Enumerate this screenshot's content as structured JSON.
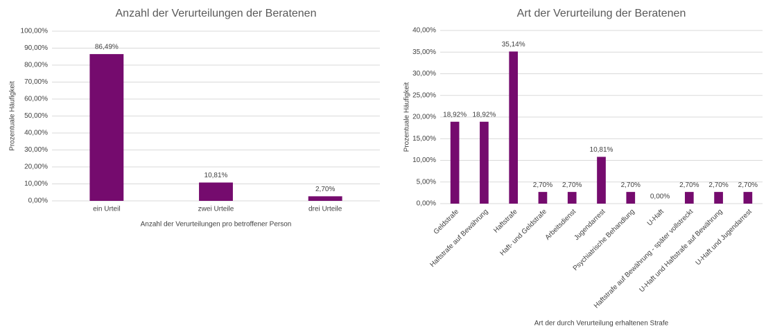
{
  "chart_data": [
    {
      "type": "bar",
      "title": "Anzahl der Verurteilungen der Beratenen",
      "categories": [
        "ein Urteil",
        "zwei Urteile",
        "drei Urteile"
      ],
      "values": [
        86.49,
        10.81,
        2.7
      ],
      "value_labels": [
        "86,49%",
        "10,81%",
        "2,70%"
      ],
      "color": "#750b6e",
      "ylim": [
        0,
        100
      ],
      "yticks": [
        {
          "value": 0,
          "label": "0,00%"
        },
        {
          "value": 10,
          "label": "10,00%"
        },
        {
          "value": 20,
          "label": "20,00%"
        },
        {
          "value": 30,
          "label": "30,00%"
        },
        {
          "value": 40,
          "label": "40,00%"
        },
        {
          "value": 50,
          "label": "50,00%"
        },
        {
          "value": 60,
          "label": "60,00%"
        },
        {
          "value": 70,
          "label": "70,00%"
        },
        {
          "value": 80,
          "label": "80,00%"
        },
        {
          "value": 90,
          "label": "90,00%"
        },
        {
          "value": 100,
          "label": "100,00%"
        }
      ],
      "ylabel": "Prozentuale Häufigkeit",
      "xlabel": "Anzahl der Verurteilungen pro betroffener Person",
      "grid": true
    },
    {
      "type": "bar",
      "title": "Art der Verurteilung der Beratenen",
      "categories": [
        "Geldstrafe",
        "Haftstrafe auf Bewährung",
        "Haftstrafe",
        "Haft- und Geldstrafe",
        "Arbeitsdienst",
        "Jugendarrest",
        "Psychiatrische Behandlung",
        "U-Haft",
        "Haftstrafe auf Bewährung - später vollstreckt",
        "U-Haft und Haftstrafe auf Bewährung",
        "U-Haft und Jugendarrest"
      ],
      "values": [
        18.92,
        18.92,
        35.14,
        2.7,
        2.7,
        10.81,
        2.7,
        0,
        2.7,
        2.7,
        2.7
      ],
      "value_labels": [
        "18,92%",
        "18,92%",
        "35,14%",
        "2,70%",
        "2,70%",
        "10,81%",
        "2,70%",
        "0,00%",
        "2,70%",
        "2,70%",
        "2,70%"
      ],
      "color": "#750b6e",
      "ylim": [
        0,
        40
      ],
      "yticks": [
        {
          "value": 0,
          "label": "0,00%"
        },
        {
          "value": 5,
          "label": "5,00%"
        },
        {
          "value": 10,
          "label": "10,00%"
        },
        {
          "value": 15,
          "label": "15,00%"
        },
        {
          "value": 20,
          "label": "20,00%"
        },
        {
          "value": 25,
          "label": "25,00%"
        },
        {
          "value": 30,
          "label": "30,00%"
        },
        {
          "value": 35,
          "label": "35,00%"
        },
        {
          "value": 40,
          "label": "40,00%"
        }
      ],
      "ylabel": "Prozentuale Häufigkeit",
      "xlabel": "Art der durch Verurteilung erhaltenen Strafe",
      "grid": true
    }
  ]
}
